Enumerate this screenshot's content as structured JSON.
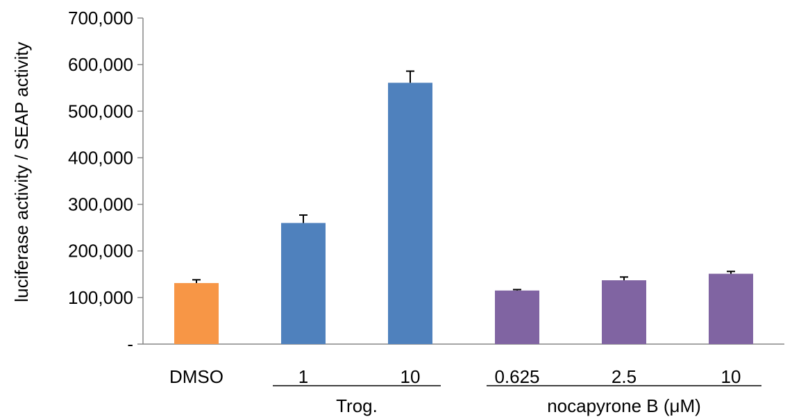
{
  "chart_data": {
    "type": "bar",
    "ylabel": "luciferase activity / SEAP activity",
    "ylim": [
      0,
      700000
    ],
    "yticks": [
      {
        "value": 0,
        "label": "-"
      },
      {
        "value": 100000,
        "label": "100,000"
      },
      {
        "value": 200000,
        "label": "200,000"
      },
      {
        "value": 300000,
        "label": "300,000"
      },
      {
        "value": 400000,
        "label": "400,000"
      },
      {
        "value": 500000,
        "label": "500,000"
      },
      {
        "value": 600000,
        "label": "600,000"
      },
      {
        "value": 700000,
        "label": "700,000"
      }
    ],
    "categories": [
      "DMSO",
      "1",
      "10",
      "0.625",
      "2.5",
      "10"
    ],
    "values": [
      131000,
      260000,
      561000,
      115000,
      137000,
      151000
    ],
    "errors": [
      7000,
      17000,
      25000,
      2000,
      7000,
      5000
    ],
    "colors": [
      "#F79646",
      "#4F81BD",
      "#4F81BD",
      "#8064A2",
      "#8064A2",
      "#8064A2"
    ],
    "groups": [
      {
        "label": "Trog.",
        "from": 1,
        "to": 2
      },
      {
        "label": "nocapyrone B (μM)",
        "from": 3,
        "to": 5
      }
    ],
    "grid": false,
    "legend": "none"
  }
}
